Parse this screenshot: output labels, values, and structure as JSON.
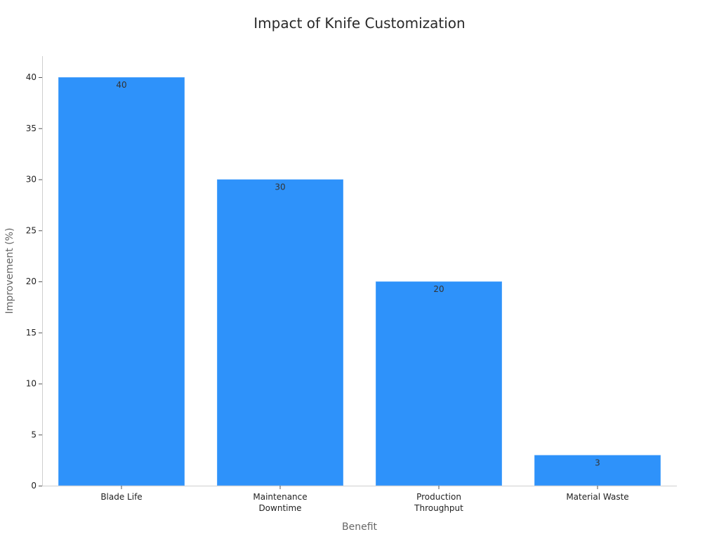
{
  "chart_data": {
    "type": "bar",
    "title": "Impact of Knife Customization",
    "xlabel": "Benefit",
    "ylabel": "Improvement (%)",
    "categories": [
      "Blade Life",
      "Maintenance Downtime",
      "Production Throughput",
      "Material Waste"
    ],
    "category_lines": [
      [
        "Blade Life"
      ],
      [
        "Maintenance",
        "Downtime"
      ],
      [
        "Production",
        "Throughput"
      ],
      [
        "Material Waste"
      ]
    ],
    "values": [
      40,
      30,
      20,
      3
    ],
    "data_labels": [
      "40",
      "30",
      "20",
      "3"
    ],
    "ylim": [
      0,
      42
    ],
    "yticks": [
      0,
      5,
      10,
      15,
      20,
      25,
      30,
      35,
      40
    ],
    "grid": false,
    "bar_color": "#2e92fa"
  }
}
